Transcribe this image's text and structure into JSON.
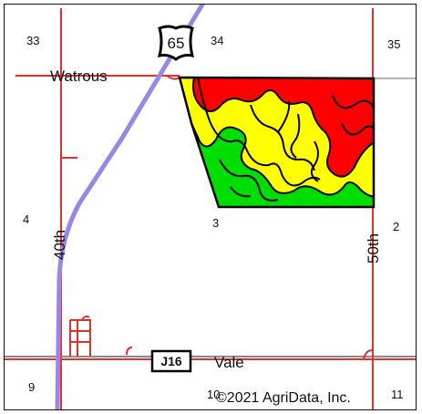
{
  "map": {
    "sections": {
      "s33": "33",
      "s34": "34",
      "s35": "35",
      "s4": "4",
      "s3": "3",
      "s2": "2",
      "s9": "9",
      "s10": "10",
      "s11": "11"
    },
    "place_labels": {
      "watrous": "Watrous",
      "vale": "Vale"
    },
    "road_labels": {
      "road_40th": "40th",
      "road_50th": "50th"
    },
    "shields": {
      "us_route": "65",
      "county_route": "J16"
    },
    "copyright": "©2021 AgriData, Inc."
  },
  "legend_colors": {
    "high_yield": "#ff0000",
    "medium_yield": "#ffff00",
    "low_yield": "#00dd00",
    "highway": "#9a86e6",
    "local_road": "#e03030",
    "section_line": "#8a8a8a"
  },
  "icons": {
    "us_highway_shield": "us-highway-shield-icon",
    "county_road_sign": "county-road-sign-icon"
  }
}
